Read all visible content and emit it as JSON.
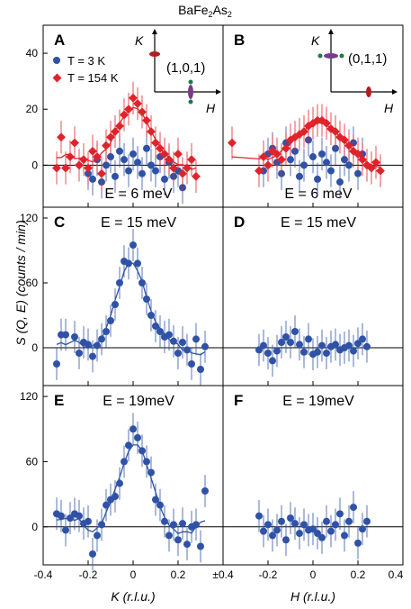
{
  "figure": {
    "title": "BaFe",
    "title_sub": "2",
    "title_rest": "As",
    "title_sub2": "2",
    "ylabel": "S (Q, E)  (counts / min)",
    "xlabel_left": "K (r.l.u.)",
    "xlabel_right": "H (r.l.u.)"
  },
  "x_ticks": {
    "left": [
      "-0.4",
      "-0.2",
      "0",
      "0.2",
      "±0.4"
    ],
    "right": [
      "-0.2",
      "0",
      "0.2",
      "0.4"
    ]
  },
  "legend": {
    "blue": "T = 3 K",
    "red": "T = 154 K",
    "colors": {
      "blue": "#2f52a6",
      "red": "#e0232b"
    }
  },
  "insets": {
    "A": {
      "label": "(1,0,1)",
      "axis_v": "K",
      "axis_h": "H"
    },
    "B": {
      "label": "(0,1,1)",
      "axis_v": "K",
      "axis_h": "H"
    }
  },
  "chart_data": [
    {
      "panel": "A",
      "type": "scatter",
      "energy_label": "E = 6 meV",
      "xlabel": "K (r.l.u.)",
      "xlim": [
        -0.4,
        0.4
      ],
      "ylim": [
        -15,
        50
      ],
      "yticks": [
        "0",
        "20",
        "40"
      ],
      "series": [
        {
          "name": "T = 3 K",
          "color": "#2f52a6",
          "marker": "circle",
          "x": [
            -0.2,
            -0.18,
            -0.16,
            -0.14,
            -0.12,
            -0.1,
            -0.08,
            -0.06,
            -0.04,
            -0.02,
            0,
            0.02,
            0.04,
            0.06,
            0.08,
            0.1,
            0.12,
            0.14,
            0.16,
            0.18,
            0.2,
            0.22
          ],
          "y": [
            -3,
            -5,
            2,
            -6,
            0,
            3,
            -4,
            5,
            2,
            -2,
            4,
            1,
            -3,
            6,
            0,
            -2,
            3,
            -5,
            1,
            -4,
            -2,
            -8
          ]
        },
        {
          "name": "T = 154 K",
          "color": "#e0232b",
          "marker": "diamond",
          "x": [
            -0.34,
            -0.32,
            -0.3,
            -0.28,
            -0.26,
            -0.24,
            -0.22,
            -0.2,
            -0.18,
            -0.16,
            -0.14,
            -0.12,
            -0.1,
            -0.08,
            -0.06,
            -0.04,
            -0.02,
            0,
            0.02,
            0.04,
            0.06,
            0.08,
            0.1,
            0.12,
            0.14,
            0.16,
            0.18,
            0.2,
            0.22,
            0.24,
            0.26,
            0.28
          ],
          "y": [
            -1,
            10,
            -1,
            3,
            8,
            0,
            2,
            -1,
            5,
            3,
            -3,
            7,
            10,
            12,
            14,
            18,
            20,
            24,
            22,
            19,
            16,
            12,
            8,
            6,
            4,
            2,
            -1,
            4,
            -3,
            -1,
            2,
            -4
          ],
          "fit": true
        }
      ]
    },
    {
      "panel": "B",
      "type": "scatter",
      "energy_label": "E = 6 meV",
      "xlabel": "H (r.l.u.)",
      "xlim": [
        -0.4,
        0.4
      ],
      "ylim": [
        -15,
        50
      ],
      "series": [
        {
          "name": "T = 3 K",
          "color": "#2f52a6",
          "marker": "circle",
          "x": [
            -0.22,
            -0.2,
            -0.18,
            -0.16,
            -0.14,
            -0.12,
            -0.1,
            -0.08,
            -0.06,
            -0.04,
            -0.02,
            0,
            0.02,
            0.04,
            0.06,
            0.08,
            0.1,
            0.12,
            0.14,
            0.16,
            0.18,
            0.2,
            0.22
          ],
          "y": [
            -2,
            4,
            6,
            1,
            -3,
            8,
            2,
            5,
            -4,
            0,
            9,
            3,
            -5,
            4,
            1,
            -2,
            6,
            -6,
            2,
            0,
            8,
            -3,
            4
          ]
        },
        {
          "name": "T = 154 K",
          "color": "#e0232b",
          "marker": "diamond",
          "x": [
            -0.36,
            -0.24,
            -0.22,
            -0.2,
            -0.18,
            -0.16,
            -0.14,
            -0.12,
            -0.1,
            -0.08,
            -0.06,
            -0.04,
            -0.02,
            0,
            0.02,
            0.04,
            0.06,
            0.08,
            0.1,
            0.12,
            0.14,
            0.16,
            0.18,
            0.2,
            0.22,
            0.24,
            0.26,
            0.28,
            0.3
          ],
          "y": [
            8,
            -2,
            3,
            0,
            5,
            4,
            2,
            6,
            9,
            10,
            11,
            12,
            14,
            15,
            16,
            16,
            15,
            13,
            12,
            10,
            9,
            7,
            5,
            4,
            2,
            0,
            -1,
            1,
            -2
          ],
          "fit": true
        }
      ]
    },
    {
      "panel": "C",
      "type": "scatter",
      "energy_label": "E = 15 meV",
      "xlabel": "K (r.l.u.)",
      "xlim": [
        -0.4,
        0.4
      ],
      "ylim": [
        -35,
        130
      ],
      "yticks": [
        "0",
        "60",
        "120"
      ],
      "series": [
        {
          "name": "T = 3 K",
          "color": "#2f52a6",
          "marker": "circle",
          "x": [
            -0.34,
            -0.32,
            -0.3,
            -0.26,
            -0.24,
            -0.22,
            -0.2,
            -0.18,
            -0.16,
            -0.14,
            -0.12,
            -0.1,
            -0.08,
            -0.06,
            -0.04,
            -0.02,
            0,
            0.02,
            0.04,
            0.06,
            0.08,
            0.1,
            0.12,
            0.14,
            0.16,
            0.18,
            0.2,
            0.22,
            0.24,
            0.26,
            0.28,
            0.3,
            0.32
          ],
          "y": [
            -15,
            12,
            12,
            10,
            -5,
            5,
            3,
            -8,
            2,
            8,
            15,
            25,
            40,
            60,
            80,
            78,
            95,
            78,
            60,
            45,
            30,
            20,
            15,
            10,
            12,
            6,
            -5,
            5,
            -2,
            -15,
            8,
            -20,
            1
          ],
          "fit": true
        }
      ]
    },
    {
      "panel": "D",
      "type": "scatter",
      "energy_label": "E = 15 meV",
      "xlabel": "H (r.l.u.)",
      "xlim": [
        -0.4,
        0.4
      ],
      "ylim": [
        -35,
        130
      ],
      "series": [
        {
          "name": "T = 3 K",
          "color": "#2f52a6",
          "marker": "circle",
          "x": [
            -0.24,
            -0.22,
            -0.2,
            -0.18,
            -0.16,
            -0.14,
            -0.12,
            -0.1,
            -0.08,
            -0.06,
            -0.04,
            -0.02,
            0,
            0.02,
            0.04,
            0.06,
            0.08,
            0.1,
            0.12,
            0.14,
            0.16,
            0.18,
            0.2,
            0.22,
            0.24
          ],
          "y": [
            -2,
            2,
            -5,
            -12,
            -3,
            5,
            10,
            5,
            15,
            3,
            -4,
            8,
            -6,
            -4,
            2,
            -5,
            1,
            3,
            -2,
            0,
            2,
            -3,
            4,
            8,
            1
          ]
        }
      ]
    },
    {
      "panel": "E",
      "type": "scatter",
      "energy_label": "E = 19meV",
      "xlabel": "K (r.l.u.)",
      "xlim": [
        -0.4,
        0.4
      ],
      "ylim": [
        -35,
        130
      ],
      "yticks": [
        "0",
        "60",
        "120"
      ],
      "series": [
        {
          "name": "T = 3 K",
          "color": "#2f52a6",
          "marker": "circle",
          "x": [
            -0.34,
            -0.32,
            -0.3,
            -0.28,
            -0.26,
            -0.24,
            -0.22,
            -0.2,
            -0.18,
            -0.16,
            -0.14,
            -0.12,
            -0.1,
            -0.08,
            -0.06,
            -0.04,
            -0.02,
            0,
            0.02,
            0.04,
            0.06,
            0.08,
            0.1,
            0.12,
            0.14,
            0.16,
            0.18,
            0.2,
            0.22,
            0.24,
            0.26,
            0.28,
            0.3,
            0.32
          ],
          "y": [
            12,
            10,
            -3,
            8,
            12,
            10,
            3,
            5,
            -25,
            -8,
            2,
            20,
            25,
            28,
            40,
            60,
            75,
            90,
            82,
            70,
            60,
            50,
            25,
            20,
            5,
            -8,
            2,
            -12,
            3,
            -16,
            0,
            2,
            -18,
            33
          ],
          "fit": true
        }
      ]
    },
    {
      "panel": "F",
      "type": "scatter",
      "energy_label": "E = 19meV",
      "xlabel": "H (r.l.u.)",
      "xlim": [
        -0.4,
        0.4
      ],
      "ylim": [
        -35,
        130
      ],
      "series": [
        {
          "name": "T = 3 K",
          "color": "#2f52a6",
          "marker": "circle",
          "x": [
            -0.24,
            -0.22,
            -0.2,
            -0.18,
            -0.16,
            -0.14,
            -0.12,
            -0.1,
            -0.08,
            -0.06,
            -0.04,
            -0.02,
            0,
            0.02,
            0.04,
            0.06,
            0.08,
            0.1,
            0.12,
            0.14,
            0.16,
            0.18,
            0.2,
            0.22,
            0.24
          ],
          "y": [
            10,
            -4,
            2,
            -8,
            -3,
            5,
            -12,
            8,
            3,
            -6,
            2,
            -3,
            -2,
            -6,
            -10,
            5,
            -4,
            2,
            12,
            -8,
            5,
            18,
            -15,
            -2,
            5
          ]
        }
      ]
    }
  ]
}
